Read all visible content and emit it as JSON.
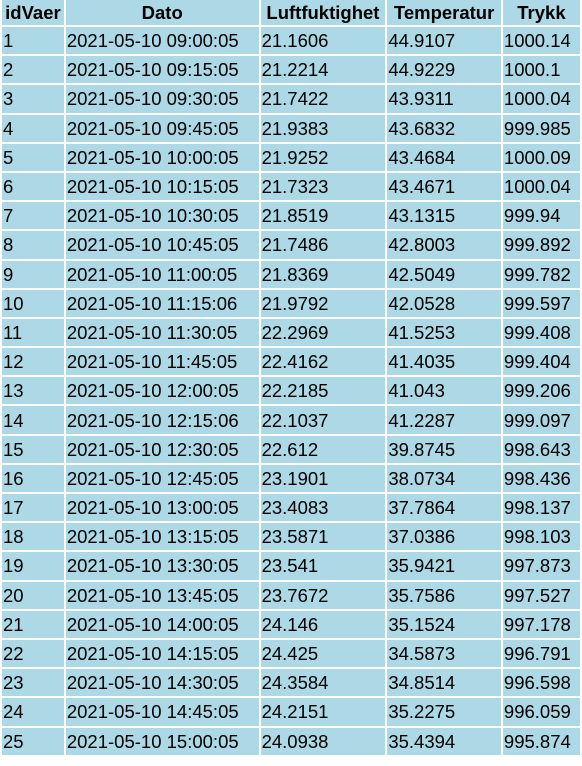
{
  "table": {
    "columns": [
      "idVaer",
      "Dato",
      "Luftfuktighet",
      "Temperatur",
      "Trykk"
    ],
    "rows": [
      [
        "1",
        "2021-05-10 09:00:05",
        "21.1606",
        "44.9107",
        "1000.14"
      ],
      [
        "2",
        "2021-05-10 09:15:05",
        "21.2214",
        "44.9229",
        "1000.1"
      ],
      [
        "3",
        "2021-05-10 09:30:05",
        "21.7422",
        "43.9311",
        "1000.04"
      ],
      [
        "4",
        "2021-05-10 09:45:05",
        "21.9383",
        "43.6832",
        "999.985"
      ],
      [
        "5",
        "2021-05-10 10:00:05",
        "21.9252",
        "43.4684",
        "1000.09"
      ],
      [
        "6",
        "2021-05-10 10:15:05",
        "21.7323",
        "43.4671",
        "1000.04"
      ],
      [
        "7",
        "2021-05-10 10:30:05",
        "21.8519",
        "43.1315",
        "999.94"
      ],
      [
        "8",
        "2021-05-10 10:45:05",
        "21.7486",
        "42.8003",
        "999.892"
      ],
      [
        "9",
        "2021-05-10 11:00:05",
        "21.8369",
        "42.5049",
        "999.782"
      ],
      [
        "10",
        "2021-05-10 11:15:06",
        "21.9792",
        "42.0528",
        "999.597"
      ],
      [
        "11",
        "2021-05-10 11:30:05",
        "22.2969",
        "41.5253",
        "999.408"
      ],
      [
        "12",
        "2021-05-10 11:45:05",
        "22.4162",
        "41.4035",
        "999.404"
      ],
      [
        "13",
        "2021-05-10 12:00:05",
        "22.2185",
        "41.043",
        "999.206"
      ],
      [
        "14",
        "2021-05-10 12:15:06",
        "22.1037",
        "41.2287",
        "999.097"
      ],
      [
        "15",
        "2021-05-10 12:30:05",
        "22.612",
        "39.8745",
        "998.643"
      ],
      [
        "16",
        "2021-05-10 12:45:05",
        "23.1901",
        "38.0734",
        "998.436"
      ],
      [
        "17",
        "2021-05-10 13:00:05",
        "23.4083",
        "37.7864",
        "998.137"
      ],
      [
        "18",
        "2021-05-10 13:15:05",
        "23.5871",
        "37.0386",
        "998.103"
      ],
      [
        "19",
        "2021-05-10 13:30:05",
        "23.541",
        "35.9421",
        "997.873"
      ],
      [
        "20",
        "2021-05-10 13:45:05",
        "23.7672",
        "35.7586",
        "997.527"
      ],
      [
        "21",
        "2021-05-10 14:00:05",
        "24.146",
        "35.1524",
        "997.178"
      ],
      [
        "22",
        "2021-05-10 14:15:05",
        "24.425",
        "34.5873",
        "996.791"
      ],
      [
        "23",
        "2021-05-10 14:30:05",
        "24.3584",
        "34.8514",
        "996.598"
      ],
      [
        "24",
        "2021-05-10 14:45:05",
        "24.2151",
        "35.2275",
        "996.059"
      ],
      [
        "25",
        "2021-05-10 15:00:05",
        "24.0938",
        "35.4394",
        "995.874"
      ]
    ]
  },
  "colors": {
    "cell_background": "#add8e6",
    "page_background": "#ffffff",
    "text": "#000000"
  }
}
